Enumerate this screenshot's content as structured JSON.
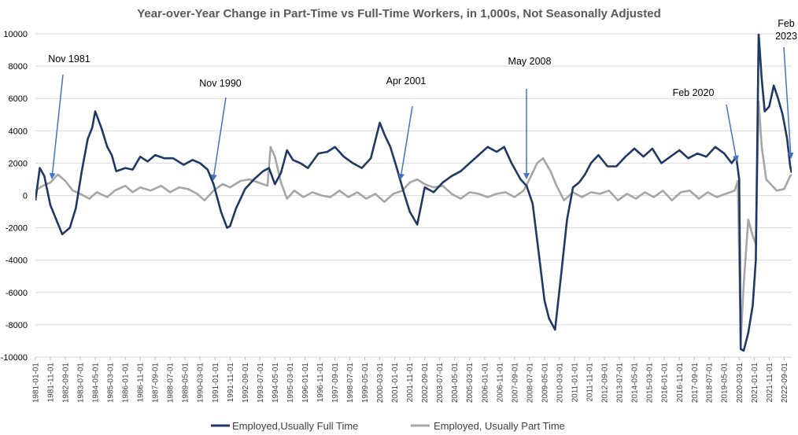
{
  "chart_data": {
    "type": "line",
    "title": "Year-over-Year Change in Part-Time vs Full-Time Workers, in 1,000s, Not Seasonally Adjusted",
    "xlabel": "",
    "ylabel": "",
    "ylim": [
      -10000,
      10000
    ],
    "yticks": [
      10000,
      8000,
      6000,
      4000,
      2000,
      0,
      -2000,
      -4000,
      -6000,
      -8000,
      -10000
    ],
    "ytick_labels": [
      "10000",
      "8000",
      "6000",
      "4000",
      "2000",
      "0",
      "-2000",
      "-4000",
      "-6000",
      "-8000",
      "-10000"
    ],
    "xlim": [
      "1981-01-01",
      "2023-02-01"
    ],
    "xtick_labels": [
      "1981-01-01",
      "1981-11-01",
      "1982-09-01",
      "1983-07-01",
      "1984-05-01",
      "1985-03-01",
      "1986-01-01",
      "1986-11-01",
      "1987-09-01",
      "1988-07-01",
      "1989-05-01",
      "1990-03-01",
      "1991-01-01",
      "1991-11-01",
      "1992-09-01",
      "1993-07-01",
      "1994-05-01",
      "1995-03-01",
      "1996-01-01",
      "1996-11-01",
      "1997-09-01",
      "1998-07-01",
      "1999-05-01",
      "2000-03-01",
      "2001-01-01",
      "2001-11-01",
      "2002-09-01",
      "2003-07-01",
      "2004-05-01",
      "2005-03-01",
      "2006-01-01",
      "2006-11-01",
      "2007-09-01",
      "2008-07-01",
      "2009-05-01",
      "2010-03-01",
      "2011-01-01",
      "2011-11-01",
      "2012-09-01",
      "2013-07-01",
      "2014-05-01",
      "2015-03-01",
      "2016-01-01",
      "2016-11-01",
      "2017-09-01",
      "2018-07-01",
      "2019-05-01",
      "2020-03-01",
      "2021-01-01",
      "2021-11-01",
      "2022-09-01"
    ],
    "grid": true,
    "legend_position": "bottom",
    "series": [
      {
        "name": "Employed,Usually Full Time",
        "color": "#1f3864",
        "points": [
          [
            "1981-01-01",
            -300
          ],
          [
            "1981-04-01",
            1700
          ],
          [
            "1981-07-01",
            1200
          ],
          [
            "1981-11-01",
            -600
          ],
          [
            "1982-03-01",
            -1500
          ],
          [
            "1982-07-01",
            -2400
          ],
          [
            "1982-12-01",
            -2000
          ],
          [
            "1983-04-01",
            -800
          ],
          [
            "1983-08-01",
            1500
          ],
          [
            "1983-12-01",
            3500
          ],
          [
            "1984-03-01",
            4200
          ],
          [
            "1984-05-01",
            5200
          ],
          [
            "1984-09-01",
            4200
          ],
          [
            "1985-01-01",
            3000
          ],
          [
            "1985-04-01",
            2500
          ],
          [
            "1985-07-01",
            1500
          ],
          [
            "1986-01-01",
            1700
          ],
          [
            "1986-06-01",
            1600
          ],
          [
            "1986-11-01",
            2400
          ],
          [
            "1987-04-01",
            2100
          ],
          [
            "1987-09-01",
            2500
          ],
          [
            "1988-03-01",
            2300
          ],
          [
            "1988-09-01",
            2300
          ],
          [
            "1989-04-01",
            1900
          ],
          [
            "1989-10-01",
            2200
          ],
          [
            "1990-03-01",
            2000
          ],
          [
            "1990-08-01",
            1600
          ],
          [
            "1990-12-01",
            700
          ],
          [
            "1991-05-01",
            -1000
          ],
          [
            "1991-09-01",
            -2000
          ],
          [
            "1991-11-01",
            -1900
          ],
          [
            "1992-03-01",
            -800
          ],
          [
            "1992-09-01",
            400
          ],
          [
            "1993-03-01",
            1000
          ],
          [
            "1993-09-01",
            1500
          ],
          [
            "1994-01-01",
            1700
          ],
          [
            "1994-05-01",
            700
          ],
          [
            "1994-09-01",
            1400
          ],
          [
            "1995-01-01",
            2800
          ],
          [
            "1995-05-01",
            2200
          ],
          [
            "1995-10-01",
            2000
          ],
          [
            "1996-03-01",
            1700
          ],
          [
            "1996-10-01",
            2600
          ],
          [
            "1997-04-01",
            2700
          ],
          [
            "1997-09-01",
            3000
          ],
          [
            "1998-03-01",
            2400
          ],
          [
            "1998-09-01",
            2000
          ],
          [
            "1999-03-01",
            1700
          ],
          [
            "1999-09-01",
            2300
          ],
          [
            "2000-03-01",
            4500
          ],
          [
            "2000-06-01",
            3800
          ],
          [
            "2000-10-01",
            3000
          ],
          [
            "2001-02-01",
            1800
          ],
          [
            "2001-07-01",
            200
          ],
          [
            "2001-11-01",
            -1000
          ],
          [
            "2002-04-01",
            -1800
          ],
          [
            "2002-09-01",
            500
          ],
          [
            "2003-03-01",
            200
          ],
          [
            "2003-09-01",
            800
          ],
          [
            "2004-03-01",
            1200
          ],
          [
            "2004-09-01",
            1500
          ],
          [
            "2005-03-01",
            2000
          ],
          [
            "2005-09-01",
            2500
          ],
          [
            "2006-03-01",
            3000
          ],
          [
            "2006-09-01",
            2700
          ],
          [
            "2007-02-01",
            3000
          ],
          [
            "2007-07-01",
            2000
          ],
          [
            "2008-01-01",
            1000
          ],
          [
            "2008-05-01",
            600
          ],
          [
            "2008-09-01",
            -500
          ],
          [
            "2009-01-01",
            -3500
          ],
          [
            "2009-05-01",
            -6500
          ],
          [
            "2009-08-01",
            -7600
          ],
          [
            "2009-12-01",
            -8300
          ],
          [
            "2010-04-01",
            -5000
          ],
          [
            "2010-08-01",
            -1500
          ],
          [
            "2010-12-01",
            500
          ],
          [
            "2011-04-01",
            800
          ],
          [
            "2011-08-01",
            1300
          ],
          [
            "2011-12-01",
            2000
          ],
          [
            "2012-05-01",
            2500
          ],
          [
            "2012-11-01",
            1800
          ],
          [
            "2013-05-01",
            1800
          ],
          [
            "2013-11-01",
            2400
          ],
          [
            "2014-05-01",
            2900
          ],
          [
            "2014-11-01",
            2400
          ],
          [
            "2015-05-01",
            2900
          ],
          [
            "2015-11-01",
            2000
          ],
          [
            "2016-05-01",
            2400
          ],
          [
            "2016-11-01",
            2800
          ],
          [
            "2017-05-01",
            2300
          ],
          [
            "2017-11-01",
            2600
          ],
          [
            "2018-05-01",
            2400
          ],
          [
            "2018-11-01",
            3000
          ],
          [
            "2019-05-01",
            2600
          ],
          [
            "2019-10-01",
            2000
          ],
          [
            "2020-01-01",
            2400
          ],
          [
            "2020-03-01",
            1000
          ],
          [
            "2020-04-01",
            -9500
          ],
          [
            "2020-06-01",
            -9600
          ],
          [
            "2020-09-01",
            -8500
          ],
          [
            "2020-12-01",
            -6800
          ],
          [
            "2021-02-01",
            -4000
          ],
          [
            "2021-04-01",
            10000
          ],
          [
            "2021-06-01",
            7200
          ],
          [
            "2021-08-01",
            5200
          ],
          [
            "2021-11-01",
            5500
          ],
          [
            "2022-02-01",
            6800
          ],
          [
            "2022-05-01",
            6000
          ],
          [
            "2022-08-01",
            5000
          ],
          [
            "2022-11-01",
            3500
          ],
          [
            "2023-01-01",
            1800
          ],
          [
            "2023-02-01",
            1400
          ]
        ]
      },
      {
        "name": "Employed, Usually Part Time",
        "color": "#a6a6a6",
        "points": [
          [
            "1981-01-01",
            300
          ],
          [
            "1981-06-01",
            600
          ],
          [
            "1981-11-01",
            800
          ],
          [
            "1982-04-01",
            1300
          ],
          [
            "1982-09-01",
            900
          ],
          [
            "1983-02-01",
            300
          ],
          [
            "1983-07-01",
            100
          ],
          [
            "1984-01-01",
            -200
          ],
          [
            "1984-06-01",
            200
          ],
          [
            "1985-01-01",
            -100
          ],
          [
            "1985-06-01",
            300
          ],
          [
            "1986-01-01",
            600
          ],
          [
            "1986-06-01",
            200
          ],
          [
            "1986-11-01",
            500
          ],
          [
            "1987-06-01",
            300
          ],
          [
            "1988-01-01",
            600
          ],
          [
            "1988-07-01",
            200
          ],
          [
            "1989-01-01",
            500
          ],
          [
            "1989-07-01",
            400
          ],
          [
            "1990-01-01",
            100
          ],
          [
            "1990-06-01",
            -300
          ],
          [
            "1990-12-01",
            300
          ],
          [
            "1991-06-01",
            700
          ],
          [
            "1991-11-01",
            500
          ],
          [
            "1992-06-01",
            900
          ],
          [
            "1992-12-01",
            1000
          ],
          [
            "1993-06-01",
            800
          ],
          [
            "1993-12-01",
            600
          ],
          [
            "1994-02-01",
            3000
          ],
          [
            "1994-05-01",
            2400
          ],
          [
            "1994-09-01",
            800
          ],
          [
            "1995-01-01",
            -200
          ],
          [
            "1995-06-01",
            300
          ],
          [
            "1995-12-01",
            -100
          ],
          [
            "1996-06-01",
            200
          ],
          [
            "1996-12-01",
            0
          ],
          [
            "1997-06-01",
            -100
          ],
          [
            "1997-12-01",
            300
          ],
          [
            "1998-06-01",
            -100
          ],
          [
            "1998-12-01",
            200
          ],
          [
            "1999-06-01",
            -200
          ],
          [
            "1999-12-01",
            100
          ],
          [
            "2000-06-01",
            -400
          ],
          [
            "2000-12-01",
            100
          ],
          [
            "2001-06-01",
            300
          ],
          [
            "2001-11-01",
            800
          ],
          [
            "2002-04-01",
            1000
          ],
          [
            "2002-09-01",
            700
          ],
          [
            "2003-03-01",
            500
          ],
          [
            "2003-09-01",
            600
          ],
          [
            "2004-03-01",
            100
          ],
          [
            "2004-09-01",
            -200
          ],
          [
            "2005-03-01",
            200
          ],
          [
            "2005-09-01",
            100
          ],
          [
            "2006-03-01",
            -100
          ],
          [
            "2006-09-01",
            100
          ],
          [
            "2007-03-01",
            200
          ],
          [
            "2007-09-01",
            -100
          ],
          [
            "2008-03-01",
            300
          ],
          [
            "2008-08-01",
            1200
          ],
          [
            "2008-12-01",
            2000
          ],
          [
            "2009-04-01",
            2300
          ],
          [
            "2009-09-01",
            1500
          ],
          [
            "2010-01-01",
            600
          ],
          [
            "2010-06-01",
            -300
          ],
          [
            "2010-12-01",
            200
          ],
          [
            "2011-06-01",
            -100
          ],
          [
            "2011-12-01",
            200
          ],
          [
            "2012-06-01",
            100
          ],
          [
            "2012-12-01",
            300
          ],
          [
            "2013-06-01",
            -300
          ],
          [
            "2013-12-01",
            100
          ],
          [
            "2014-06-01",
            -200
          ],
          [
            "2014-12-01",
            200
          ],
          [
            "2015-06-01",
            -100
          ],
          [
            "2015-12-01",
            300
          ],
          [
            "2016-06-01",
            -300
          ],
          [
            "2016-12-01",
            200
          ],
          [
            "2017-06-01",
            300
          ],
          [
            "2017-12-01",
            -200
          ],
          [
            "2018-06-01",
            200
          ],
          [
            "2018-12-01",
            -100
          ],
          [
            "2019-06-01",
            100
          ],
          [
            "2019-12-01",
            300
          ],
          [
            "2020-02-01",
            900
          ],
          [
            "2020-04-01",
            -9000
          ],
          [
            "2020-06-01",
            -5500
          ],
          [
            "2020-09-01",
            -1500
          ],
          [
            "2020-12-01",
            -2500
          ],
          [
            "2021-02-01",
            -3000
          ],
          [
            "2021-04-01",
            5800
          ],
          [
            "2021-06-01",
            3000
          ],
          [
            "2021-09-01",
            1000
          ],
          [
            "2021-12-01",
            700
          ],
          [
            "2022-04-01",
            300
          ],
          [
            "2022-09-01",
            400
          ],
          [
            "2023-01-01",
            1200
          ],
          [
            "2023-02-01",
            1300
          ]
        ]
      }
    ],
    "annotations": [
      {
        "label": "Nov 1981",
        "date": "1981-11-01"
      },
      {
        "label": "Nov 1990",
        "date": "1990-11-01"
      },
      {
        "label": "Apr 2001",
        "date": "2001-04-01"
      },
      {
        "label": "May 2008",
        "date": "2008-05-01"
      },
      {
        "label": "Feb 2020",
        "date": "2020-02-01"
      },
      {
        "label": "Feb\n2023",
        "date": "2023-02-01"
      }
    ]
  }
}
